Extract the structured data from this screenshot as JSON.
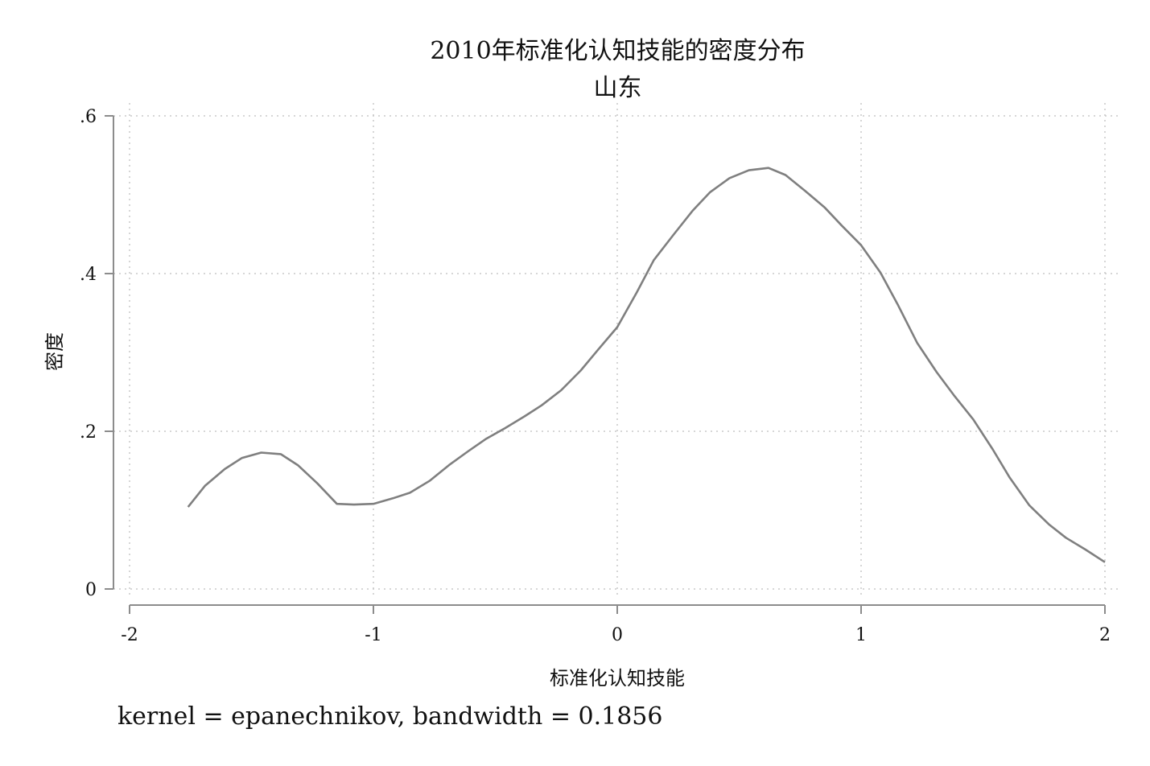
{
  "chart_data": {
    "type": "line",
    "title": "2010年标准化认知技能的密度分布",
    "subtitle": "山东",
    "xlabel": "标准化认知技能",
    "ylabel": "密度",
    "xlim": [
      -2,
      2
    ],
    "ylim": [
      0,
      0.6
    ],
    "xticks": [
      -2,
      -1,
      0,
      1,
      2
    ],
    "xtick_labels": [
      "-2",
      "-1",
      "0",
      "1",
      "2"
    ],
    "yticks": [
      0,
      0.2,
      0.4,
      0.6
    ],
    "ytick_labels": [
      "0",
      ".2",
      ".4",
      ".6"
    ],
    "grid": true,
    "note": "kernel = epanechnikov, bandwidth = 0.1856",
    "line_color": "#7f7f7f",
    "series": [
      {
        "x": [
          -1.76,
          -1.69,
          -1.61,
          -1.54,
          -1.46,
          -1.38,
          -1.31,
          -1.23,
          -1.15,
          -1.08,
          -1.0,
          -0.92,
          -0.85,
          -0.77,
          -0.69,
          -0.61,
          -0.54,
          -0.46,
          -0.38,
          -0.31,
          -0.23,
          -0.15,
          -0.08,
          0.0,
          0.08,
          0.15,
          0.23,
          0.31,
          0.38,
          0.46,
          0.54,
          0.62,
          0.69,
          0.77,
          0.85,
          0.92,
          1.0,
          1.08,
          1.15,
          1.23,
          1.31,
          1.38,
          1.46,
          1.54,
          1.61,
          1.69,
          1.77,
          1.84,
          1.92,
          2.0
        ],
        "y": [
          0.104,
          0.131,
          0.152,
          0.166,
          0.173,
          0.171,
          0.157,
          0.134,
          0.108,
          0.107,
          0.108,
          0.115,
          0.122,
          0.137,
          0.157,
          0.175,
          0.19,
          0.204,
          0.219,
          0.233,
          0.252,
          0.277,
          0.303,
          0.332,
          0.376,
          0.417,
          0.449,
          0.48,
          0.503,
          0.521,
          0.531,
          0.534,
          0.525,
          0.505,
          0.484,
          0.461,
          0.436,
          0.401,
          0.361,
          0.312,
          0.275,
          0.246,
          0.215,
          0.177,
          0.141,
          0.106,
          0.082,
          0.065,
          0.05,
          0.034
        ]
      }
    ]
  }
}
